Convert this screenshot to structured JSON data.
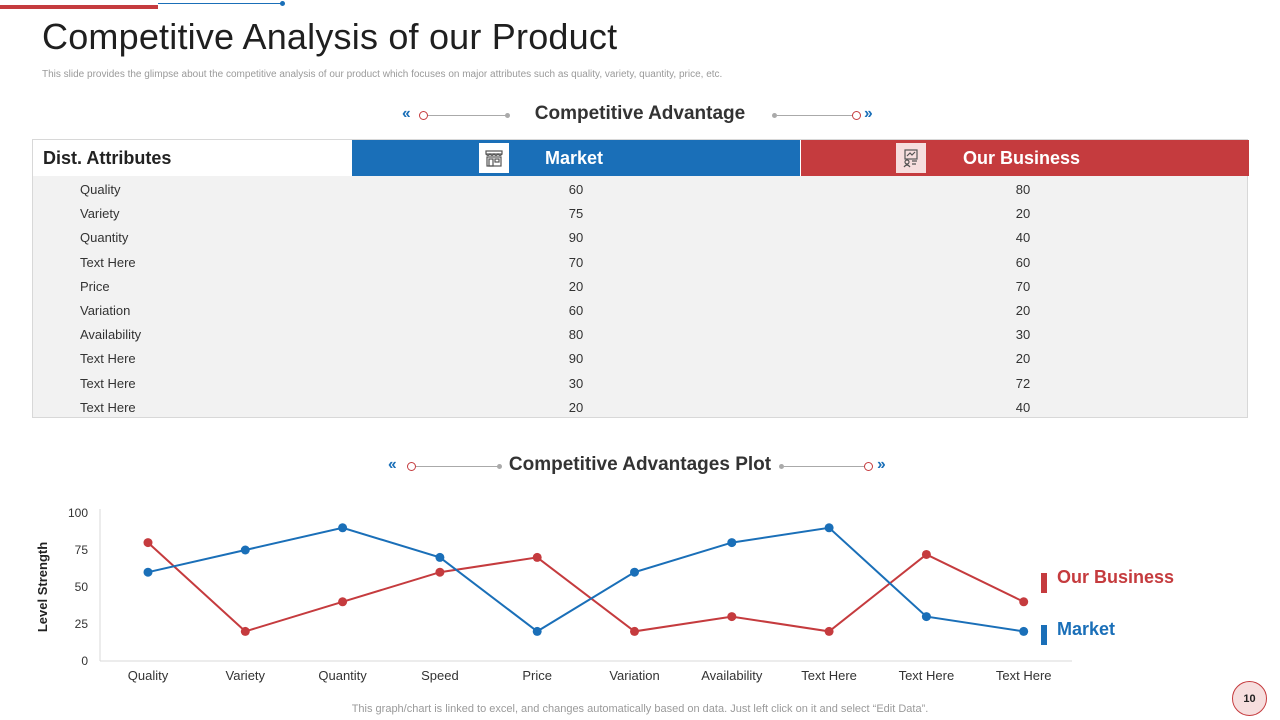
{
  "slide": {
    "title": "Competitive Analysis of our Product",
    "subtitle": "This slide provides the glimpse about the competitive analysis of our product which focuses on major attributes such as quality, variety, quantity, price, etc.",
    "page_number": "10",
    "footnote": "This graph/chart is linked to excel, and changes automatically based on data. Just left click on it and select “Edit Data”."
  },
  "colors": {
    "market": "#1a6fb8",
    "our_business": "#c53b3e",
    "row_bg": "#f2f2f2"
  },
  "table_section": {
    "heading": "Competitive Advantage",
    "columns": {
      "attribute": "Dist. Attributes",
      "market": "Market",
      "our_business": "Our Business"
    },
    "icons": {
      "market": "store-icon",
      "our_business": "business-icon"
    },
    "rows": [
      {
        "attribute": "Quality",
        "market": "60",
        "our_business": "80"
      },
      {
        "attribute": "Variety",
        "market": "75",
        "our_business": "20"
      },
      {
        "attribute": "Quantity",
        "market": "90",
        "our_business": "40"
      },
      {
        "attribute": "Text Here",
        "market": "70",
        "our_business": "60"
      },
      {
        "attribute": "Price",
        "market": "20",
        "our_business": "70"
      },
      {
        "attribute": "Variation",
        "market": "60",
        "our_business": "20"
      },
      {
        "attribute": "Availability",
        "market": "80",
        "our_business": "30"
      },
      {
        "attribute": "Text Here",
        "market": "90",
        "our_business": "20"
      },
      {
        "attribute": "Text Here",
        "market": "30",
        "our_business": "72"
      },
      {
        "attribute": "Text Here",
        "market": "20",
        "our_business": "40"
      }
    ]
  },
  "chart_section": {
    "heading": "Competitive Advantages Plot"
  },
  "chart_data": {
    "type": "line",
    "title": "Competitive Advantages Plot",
    "xlabel": "",
    "ylabel": "Level Strength",
    "categories": [
      "Quality",
      "Variety",
      "Quantity",
      "Speed",
      "Price",
      "Variation",
      "Availability",
      "Text Here",
      "Text Here",
      "Text Here"
    ],
    "ylim": [
      0,
      100
    ],
    "yticks": [
      0,
      25,
      50,
      75,
      100
    ],
    "grid": false,
    "legend_position": "right",
    "series": [
      {
        "name": "Our Business",
        "color": "#c53b3e",
        "values": [
          80,
          20,
          40,
          60,
          70,
          20,
          30,
          20,
          72,
          40
        ]
      },
      {
        "name": "Market",
        "color": "#1a6fb8",
        "values": [
          60,
          75,
          90,
          70,
          20,
          60,
          80,
          90,
          30,
          20
        ]
      }
    ]
  }
}
